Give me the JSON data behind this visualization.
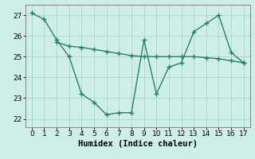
{
  "line1_x": [
    0,
    1,
    2,
    3,
    4,
    5,
    6,
    7,
    8,
    9,
    10,
    11,
    12,
    13,
    14,
    15,
    16,
    17
  ],
  "line1_y": [
    27.1,
    26.8,
    25.8,
    25.0,
    23.2,
    22.8,
    22.2,
    22.3,
    22.3,
    25.8,
    23.2,
    24.5,
    24.7,
    26.2,
    26.6,
    27.0,
    25.2,
    24.7
  ],
  "line2_x": [
    2,
    3,
    4,
    5,
    6,
    7,
    8,
    9,
    10,
    11,
    12,
    13,
    14,
    15,
    16,
    17
  ],
  "line2_y": [
    25.7,
    25.5,
    25.45,
    25.35,
    25.25,
    25.15,
    25.05,
    25.0,
    25.0,
    25.0,
    25.0,
    25.0,
    24.95,
    24.9,
    24.8,
    24.7
  ],
  "line_color": "#2d7d6e",
  "bg_color": "#ceeee8",
  "grid_color": "#aed8d0",
  "xlabel": "Humidex (Indice chaleur)",
  "xlim": [
    -0.5,
    17.5
  ],
  "ylim": [
    21.6,
    27.5
  ],
  "yticks": [
    22,
    23,
    24,
    25,
    26,
    27
  ],
  "xticks": [
    0,
    1,
    2,
    3,
    4,
    5,
    6,
    7,
    8,
    9,
    10,
    11,
    12,
    13,
    14,
    15,
    16,
    17
  ],
  "xlabel_fontsize": 7.5,
  "tick_fontsize": 6.5,
  "marker": "+",
  "markersize": 4,
  "linewidth": 1.0
}
